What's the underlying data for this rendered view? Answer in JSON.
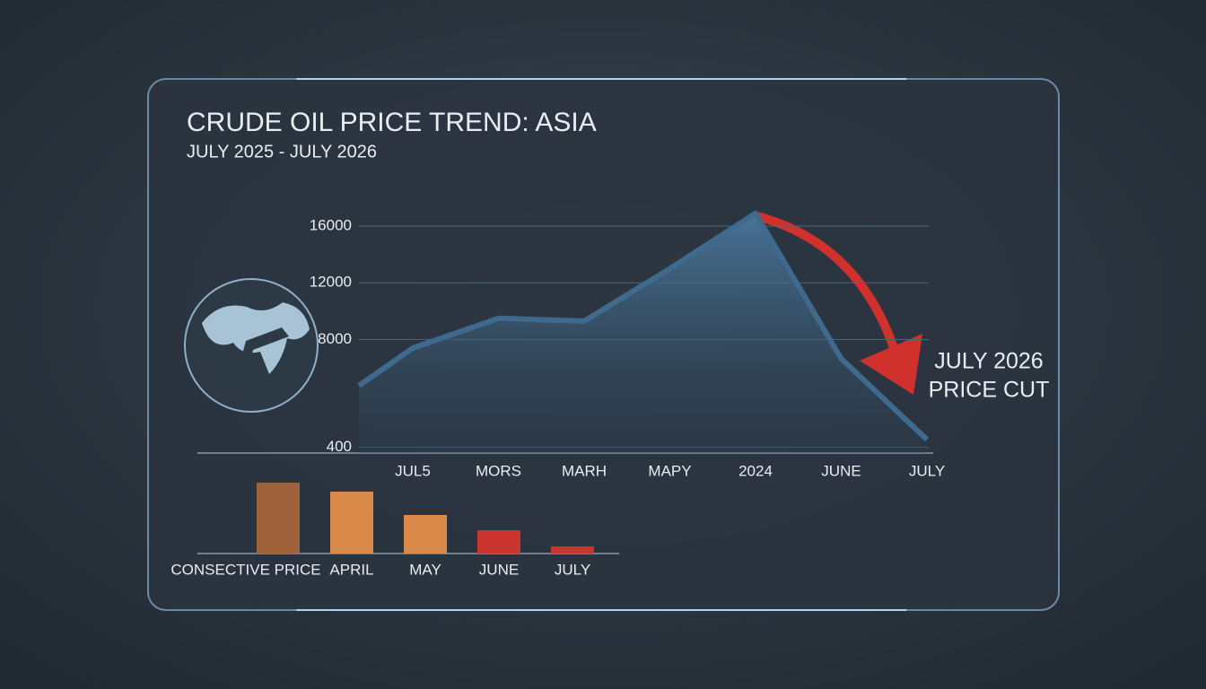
{
  "chart_data": [
    {
      "type": "area",
      "title": "CRUDE OIL PRICE TREND: ASIA",
      "subtitle": "JULY 2025 - JULY 2026",
      "categories": [
        null,
        "JUL5",
        "MORS",
        "MARH",
        "MAPY",
        "2024",
        "JUNE",
        "JULY"
      ],
      "values": [
        4750,
        7400,
        9500,
        9300,
        13000,
        16900,
        6650,
        950
      ],
      "color": "#3f6a8e",
      "ylim": [
        0,
        17000
      ],
      "yticks": [
        400,
        8000,
        12000,
        16000
      ],
      "grid": true,
      "annotation": [
        "JULY 2026",
        "PRICE CUT"
      ]
    },
    {
      "type": "bar",
      "categories": [
        "CONSECTIVE PRICE",
        "APRIL",
        "MAY",
        "JUNE",
        "JULY"
      ],
      "values": [
        79,
        69,
        43,
        26,
        8
      ],
      "colors": [
        "#a0623a",
        "#d98a4a",
        "#d98a4a",
        "#c9352e",
        "#c9352e"
      ]
    }
  ]
}
